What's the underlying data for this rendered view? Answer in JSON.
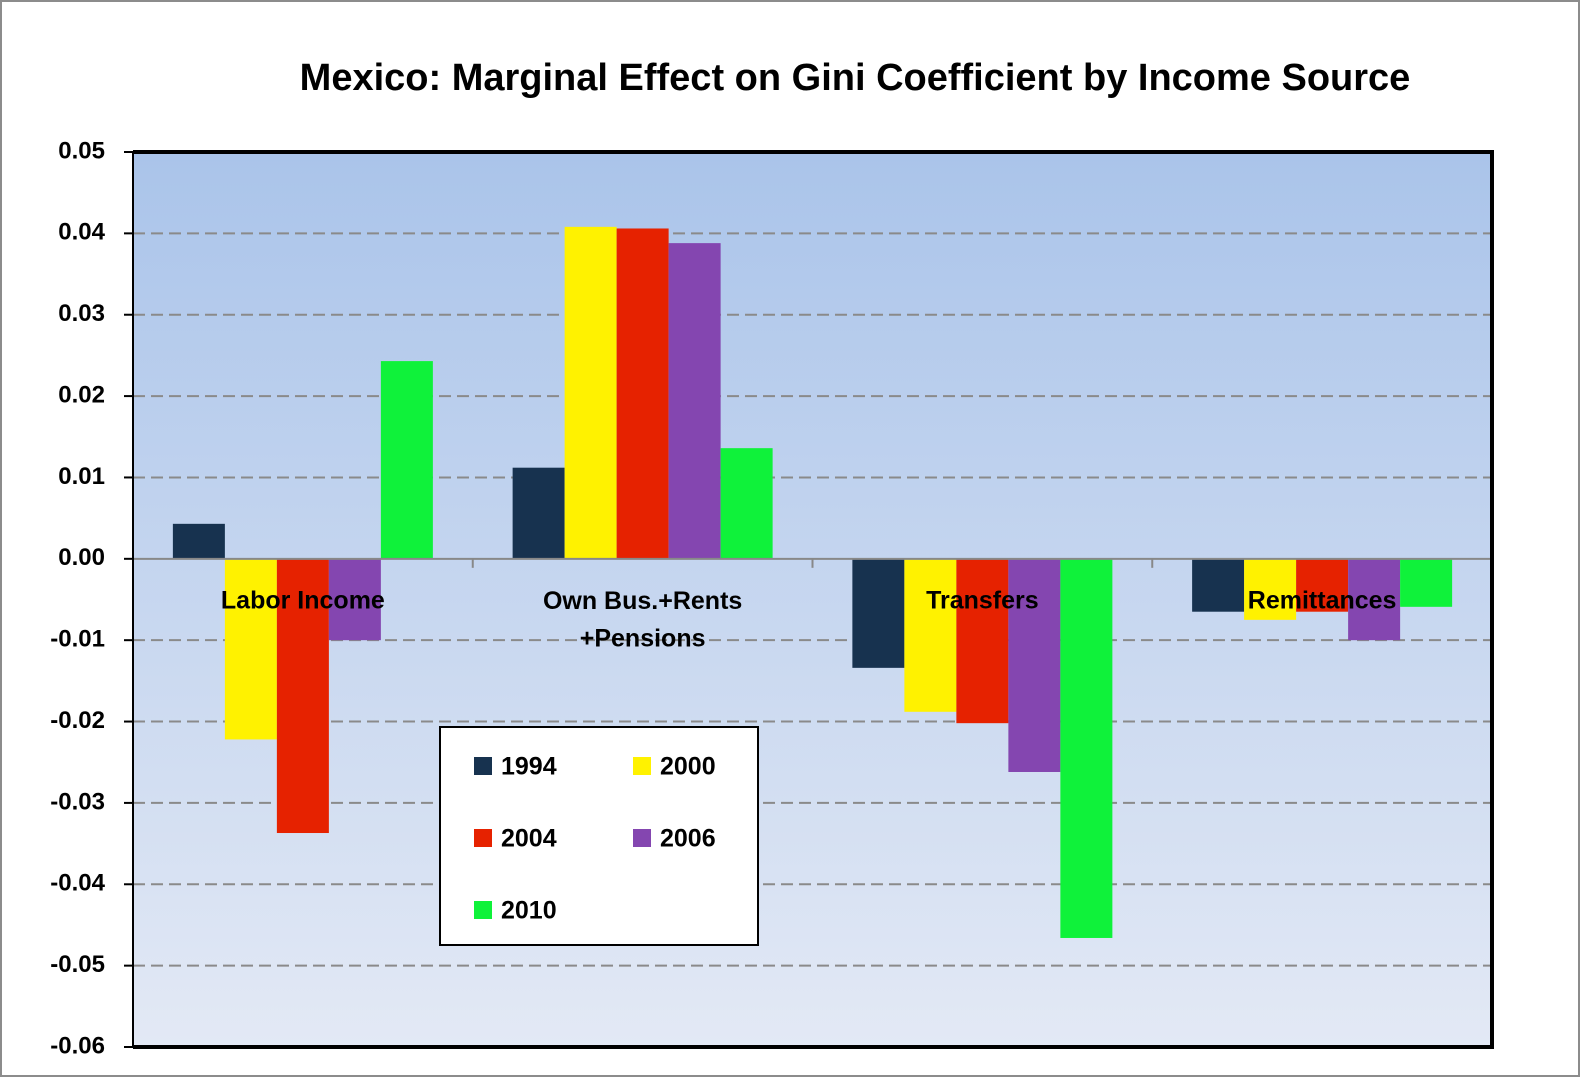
{
  "chart_data": {
    "type": "bar",
    "title": "Mexico: Marginal Effect on Gini Coefficient by Income Source",
    "categories": [
      "Labor Income",
      "Own Bus.+Rents\n+Pensions",
      "Transfers",
      "Remittances"
    ],
    "series": [
      {
        "name": "1994",
        "color": "#17324f",
        "values": [
          0.0043,
          0.0112,
          -0.0134,
          -0.0065
        ]
      },
      {
        "name": "2000",
        "color": "#fff200",
        "values": [
          -0.0222,
          0.0408,
          -0.0188,
          -0.0075
        ]
      },
      {
        "name": "2004",
        "color": "#e62200",
        "values": [
          -0.0337,
          0.0406,
          -0.0202,
          -0.0065
        ]
      },
      {
        "name": "2006",
        "color": "#8446b0",
        "values": [
          -0.01,
          0.0388,
          -0.0262,
          -0.01
        ]
      },
      {
        "name": "2010",
        "color": "#0ff23a",
        "values": [
          0.0243,
          0.0136,
          -0.0466,
          -0.0059
        ]
      }
    ],
    "ylim": [
      -0.06,
      0.05
    ],
    "yticks": [
      0.05,
      0.04,
      0.03,
      0.02,
      0.01,
      {
        "value": 0,
        "label": "0.00"
      },
      -0.01,
      -0.02,
      -0.03,
      -0.04,
      -0.05,
      -0.06
    ],
    "grid": true,
    "legend": "lower left"
  }
}
